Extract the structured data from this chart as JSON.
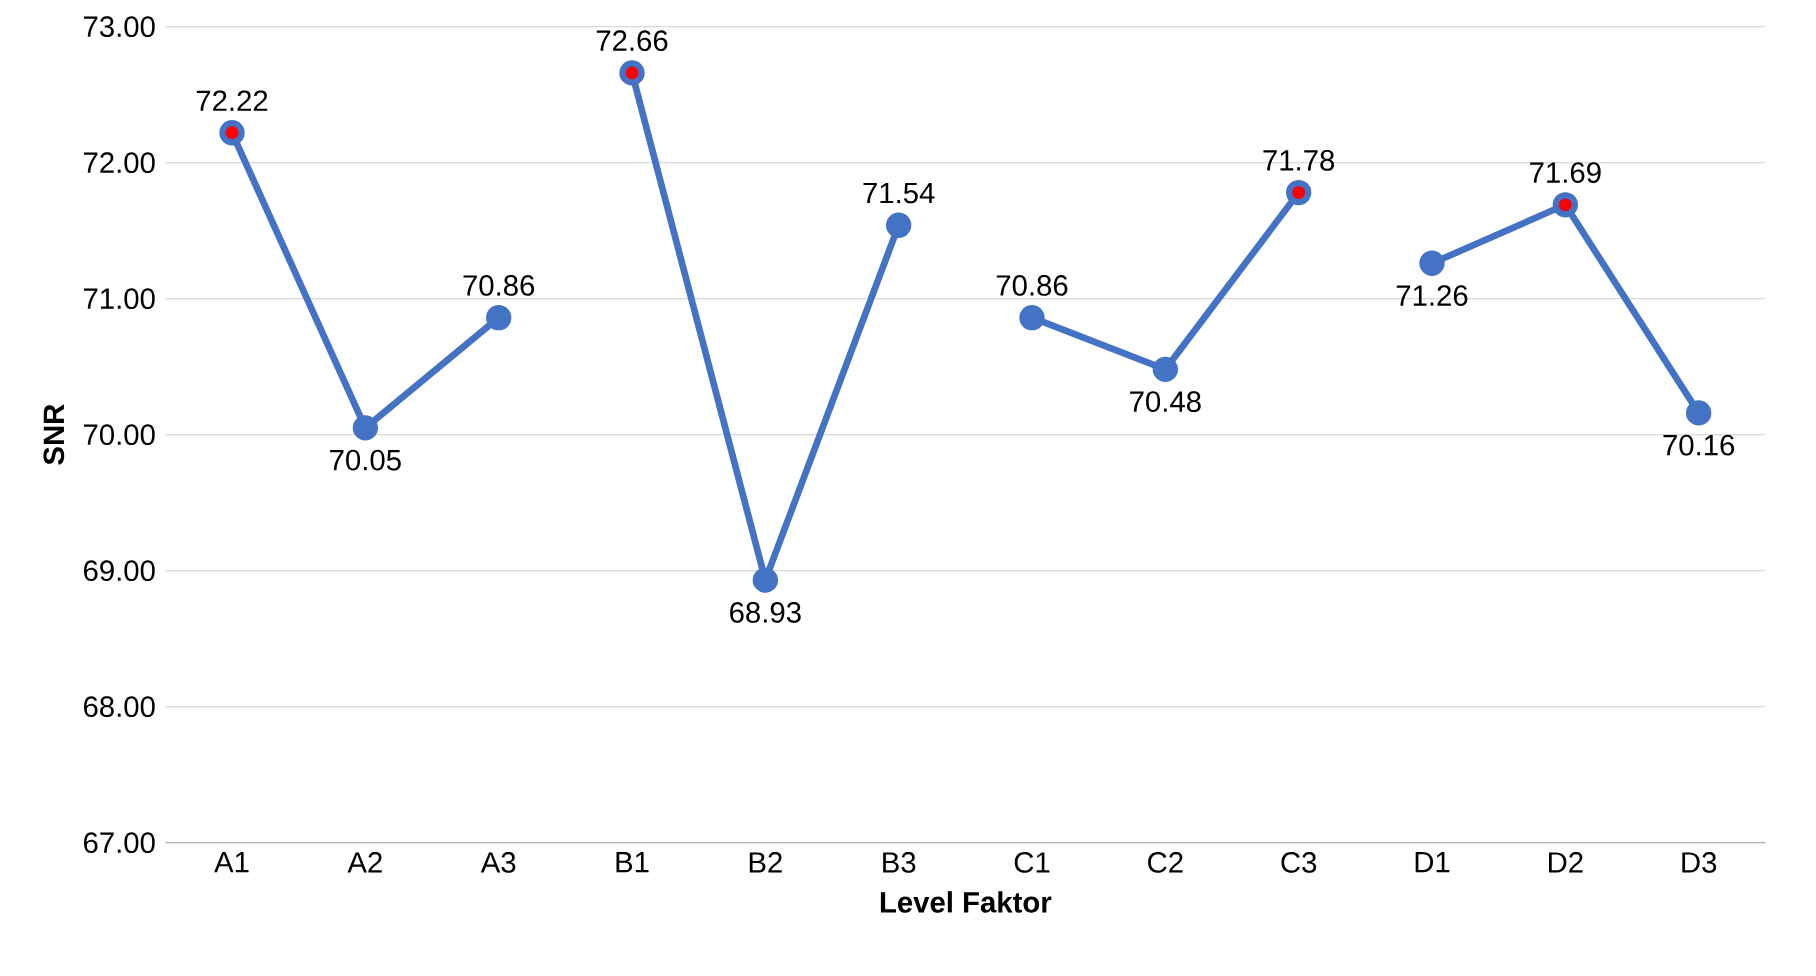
{
  "chart_data": {
    "type": "line",
    "xlabel": "Level Faktor",
    "ylabel": "SNR",
    "categories": [
      "A1",
      "A2",
      "A3",
      "B1",
      "B2",
      "B3",
      "C1",
      "C2",
      "C3",
      "D1",
      "D2",
      "D3"
    ],
    "series": [
      {
        "color": "#4472c4",
        "values": [
          72.22,
          70.05,
          70.86,
          null,
          null,
          null,
          null,
          null,
          null,
          null,
          null,
          null
        ],
        "value_labels": [
          "72.22",
          "70.05",
          "70.86",
          null,
          null,
          null,
          null,
          null,
          null,
          null,
          null,
          null
        ]
      },
      {
        "color": "#4472c4",
        "values": [
          null,
          null,
          null,
          72.66,
          68.93,
          71.54,
          null,
          null,
          null,
          null,
          null,
          null
        ],
        "value_labels": [
          null,
          null,
          null,
          "72.66",
          "68.93",
          "71.54",
          null,
          null,
          null,
          null,
          null,
          null
        ]
      },
      {
        "color": "#4472c4",
        "values": [
          null,
          null,
          null,
          null,
          null,
          null,
          70.86,
          70.48,
          71.78,
          null,
          null,
          null
        ],
        "value_labels": [
          null,
          null,
          null,
          null,
          null,
          null,
          "70.86",
          "70.48",
          "71.78",
          null,
          null,
          null
        ]
      },
      {
        "color": "#4472c4",
        "values": [
          null,
          null,
          null,
          null,
          null,
          null,
          null,
          null,
          null,
          71.26,
          71.69,
          70.16
        ],
        "value_labels": [
          null,
          null,
          null,
          null,
          null,
          null,
          null,
          null,
          null,
          "71.26",
          "71.69",
          "70.16"
        ]
      },
      {
        "type": "scatter",
        "color": "#ff0000",
        "values": [
          72.22,
          null,
          null,
          72.66,
          null,
          null,
          null,
          null,
          71.78,
          null,
          71.69,
          null
        ]
      }
    ],
    "ylim": [
      67,
      73
    ],
    "yticks": [
      {
        "value": 67,
        "label": "67.00"
      },
      {
        "value": 68,
        "label": "68.00"
      },
      {
        "value": 69,
        "label": "69.00"
      },
      {
        "value": 70,
        "label": "70.00"
      },
      {
        "value": 71,
        "label": "71.00"
      },
      {
        "value": 72,
        "label": "72.00"
      },
      {
        "value": 73,
        "label": "73.00"
      }
    ],
    "grid": "y",
    "marker": "circle",
    "line_style": "solid"
  }
}
